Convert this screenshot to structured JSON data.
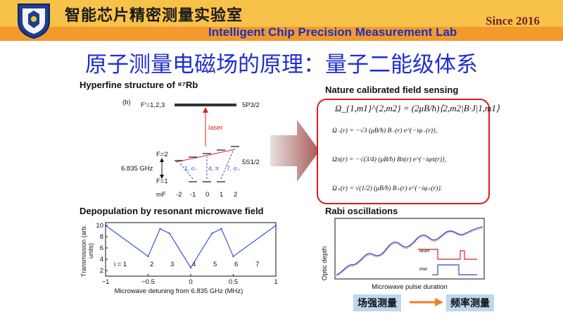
{
  "header": {
    "lab_cn": "智能芯片精密测量实验室",
    "lab_en": "Intelligent Chip Precision Measurement Lab",
    "since": "Since 2016",
    "colors": {
      "header_top": "#f7c24a",
      "header_band": "#f29a2e",
      "lab_en": "#1e2fb8"
    }
  },
  "slide": {
    "title": "原子测量电磁场的原理：量子二能级体系",
    "title_color": "#1f2fd0"
  },
  "hyperfine": {
    "title": "Hyperfine structure of ⁸⁷Rb",
    "panel_label": "(b)",
    "upper_state_f": "F'=1,2,3",
    "upper_state_name": "5P3/2",
    "laser_label": "laser",
    "f2_label": "F=2",
    "f1_label": "F=1",
    "splitting_label": "6.835 GHz",
    "ground_state_name": "5S1/2",
    "transition_labels": [
      "1, σ₋",
      "4, π",
      "7, σ₊"
    ],
    "mf_label": "mF",
    "mf_values": [
      "-2",
      "-1",
      "0",
      "1",
      "2"
    ]
  },
  "nature": {
    "title": "Nature calibrated field sensing",
    "eq_main": "Ω_{1,m1}^{2,m2} = (2μB/ħ)⟨2,m2|B·J|1,m1⟩",
    "eq_minus": "Ω₋(r) = −√3 (μB/ħ) B₋(r) e^{−iφ₋(r)},",
    "eq_pi": "Ωπ(r) = −√(3/4) (μB/ħ) Bπ(r) e^{−iφπ(r)},",
    "eq_plus": "Ω₊(r) = √(1/2) (μB/ħ) B₊(r) e^{−iφ₊(r)}."
  },
  "depopulation": {
    "title": "Depopulation by resonant microwave field",
    "ylabel": "Transmission (arb. units)",
    "xlabel": "Microwave detuning from 6.835 GHz (MHz)",
    "peak_labels": [
      "i = 1",
      "2",
      "3",
      "4",
      "5",
      "6",
      "7"
    ]
  },
  "rabi": {
    "title": "Rabi oscillations",
    "ylabel": "Optic depth",
    "xlabel": "Microwave pulse duration",
    "laser_label": "laser",
    "mw_label": "mw"
  },
  "tags": {
    "field": "场强测量",
    "freq": "频率测量"
  },
  "chart_data": {
    "type": "line",
    "title": "Depopulation by resonant microwave field",
    "xlabel": "Microwave detuning from 6.835 GHz (MHz)",
    "ylabel": "Transmission (arb. units)",
    "xlim": [
      -1,
      1
    ],
    "ylim": [
      1,
      10.5
    ],
    "xticks": [
      -1,
      -0.5,
      0,
      0.5,
      1
    ],
    "yticks": [
      2,
      4,
      6,
      8,
      10
    ],
    "x": [
      -1,
      -0.5,
      -0.36,
      -0.25,
      0,
      0.25,
      0.36,
      0.5,
      1
    ],
    "series": [
      {
        "values": [
          10,
          4.5,
          9.4,
          8.6,
          2.5,
          8.6,
          9.4,
          4.5,
          10
        ]
      }
    ]
  }
}
